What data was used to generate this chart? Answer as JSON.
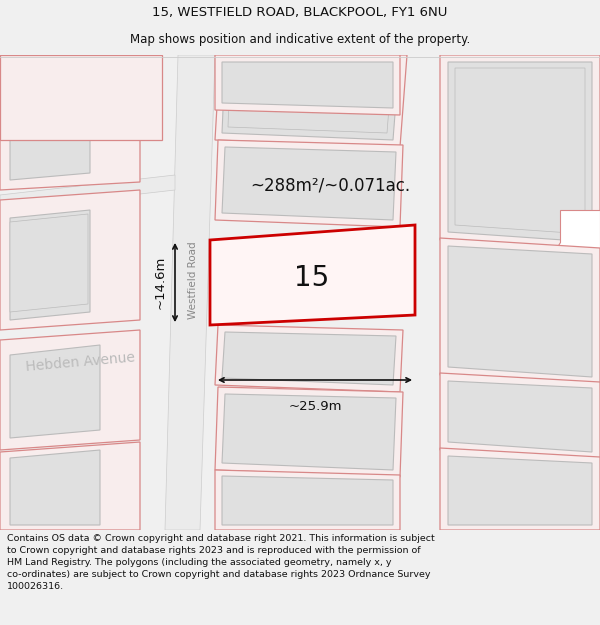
{
  "title_line1": "15, WESTFIELD ROAD, BLACKPOOL, FY1 6NU",
  "title_line2": "Map shows position and indicative extent of the property.",
  "footer_text": "Contains OS data © Crown copyright and database right 2021. This information is subject to Crown copyright and database rights 2023 and is reproduced with the permission of HM Land Registry. The polygons (including the associated geometry, namely x, y co-ordinates) are subject to Crown copyright and database rights 2023 Ordnance Survey 100026316.",
  "property_number": "15",
  "area_text": "~288m²/~0.071ac.",
  "width_text": "~25.9m",
  "height_text": "~14.6m",
  "road_label": "Westfield Road",
  "avenue_label": "Hebden Avenue",
  "bg_color": "#f0f0f0",
  "map_bg": "#ffffff",
  "building_fill": "#e0e0e0",
  "building_outline": "#bbbbbb",
  "pink_outline": "#d88888",
  "red_outline": "#cc0000",
  "black_text": "#111111",
  "road_color": "#f0f0f0",
  "title_fontsize": 9.5,
  "subtitle_fontsize": 8.5,
  "footer_fontsize": 6.8
}
